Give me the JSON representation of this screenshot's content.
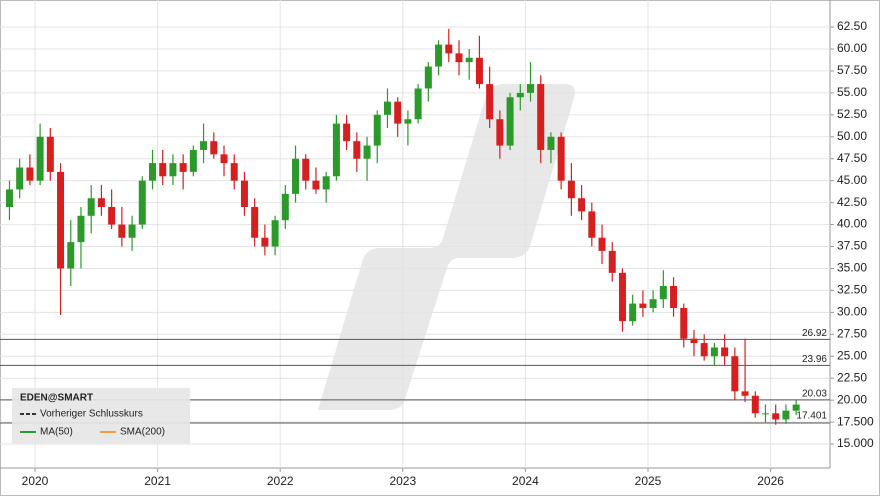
{
  "chart_data": {
    "type": "candlestick",
    "title": "EDEN@SMART",
    "categories": [
      null,
      null,
      null,
      "2020",
      null,
      null,
      null,
      null,
      null,
      null,
      null,
      null,
      null,
      null,
      null,
      "2021",
      null,
      null,
      null,
      null,
      null,
      null,
      null,
      null,
      null,
      null,
      null,
      "2022",
      null,
      null,
      null,
      null,
      null,
      null,
      null,
      null,
      null,
      null,
      null,
      "2023",
      null,
      null,
      null,
      null,
      null,
      null,
      null,
      null,
      null,
      null,
      null,
      "2024",
      null,
      null,
      null,
      null,
      null,
      null,
      null,
      null,
      null,
      null,
      null,
      "2025",
      null,
      null,
      null,
      null,
      null,
      null,
      null,
      null,
      null,
      null,
      null,
      "2026",
      null,
      null
    ],
    "open": [
      42,
      44,
      46.5,
      45,
      50,
      46,
      35,
      38,
      41,
      43,
      42,
      40,
      38.5,
      40,
      45,
      47,
      45.5,
      47,
      46,
      48.5,
      49.5,
      48,
      47,
      45,
      42,
      38.5,
      37.5,
      40.5,
      43.5,
      47.5,
      45,
      44,
      45.5,
      51.5,
      49.5,
      47.5,
      49,
      52.5,
      54,
      51.5,
      52,
      55.5,
      58,
      60.5,
      59.5,
      58.5,
      59,
      56,
      52,
      49,
      54.5,
      55,
      56,
      48.5,
      50,
      45,
      43,
      41.5,
      38.5,
      37,
      34.5,
      29,
      31,
      30.5,
      31.5,
      33,
      30.5,
      27,
      26.5,
      25,
      26,
      25,
      21,
      20.5,
      18.5,
      18.5,
      17.8,
      18.8
    ],
    "high": [
      45,
      47.5,
      48,
      51.5,
      51,
      47,
      40.5,
      42,
      44.5,
      44.5,
      44,
      42,
      41,
      45.5,
      48.5,
      48.5,
      48,
      48,
      49,
      51.5,
      50.5,
      49,
      48,
      46,
      43,
      40,
      41,
      44.5,
      49,
      48,
      46.5,
      46,
      52.5,
      52.5,
      50.5,
      50,
      53,
      55.5,
      54.5,
      53,
      56,
      58.5,
      61,
      62.3,
      61,
      60,
      61.5,
      58,
      53,
      55,
      56,
      58.5,
      57,
      50.5,
      50.5,
      47,
      44.5,
      42.5,
      40,
      38,
      35,
      32,
      32.5,
      32.5,
      34.8,
      34,
      31,
      28,
      27.5,
      26.5,
      27.5,
      26,
      27,
      21,
      19.5,
      19.5,
      19.5,
      20
    ],
    "low": [
      40.5,
      43,
      44.5,
      44.5,
      45,
      29.7,
      33,
      35,
      39,
      41,
      39.5,
      37.5,
      37,
      39.5,
      44,
      44.5,
      44.5,
      44,
      45.5,
      47,
      47.5,
      45.5,
      44,
      41,
      37.5,
      36.5,
      36.5,
      39.5,
      42.5,
      44,
      43.5,
      42.5,
      45,
      48.5,
      46,
      45,
      47,
      51,
      50,
      49,
      51.5,
      54,
      57,
      58.5,
      57,
      56.5,
      55.5,
      51,
      47.5,
      48.5,
      53,
      54,
      47,
      47,
      44,
      41,
      40.5,
      37.5,
      35.5,
      33.5,
      27.8,
      28.5,
      29.5,
      30,
      30.5,
      29.5,
      26,
      25,
      24.5,
      24,
      24,
      20,
      19.8,
      18,
      17.5,
      17.2,
      17.3,
      18.3
    ],
    "close": [
      44,
      46.5,
      45,
      50,
      46,
      35,
      38,
      41,
      43,
      42,
      40,
      38.5,
      40,
      45,
      47,
      45.5,
      47,
      46,
      48.5,
      49.5,
      48,
      47,
      45,
      42,
      38.5,
      37.5,
      40.5,
      43.5,
      47.5,
      45,
      44,
      45.5,
      51.5,
      49.5,
      47.5,
      49,
      52.5,
      54,
      51.5,
      52,
      55.5,
      58,
      60.5,
      59.5,
      58.5,
      59,
      56,
      52,
      49,
      54.5,
      55,
      56,
      48.5,
      50,
      45,
      43,
      41.5,
      38.5,
      37,
      34.5,
      29,
      31,
      30.5,
      31.5,
      33,
      30.5,
      27,
      26.5,
      25,
      26,
      25,
      21,
      20.5,
      18.5,
      18.5,
      17.8,
      18.8,
      19.5
    ],
    "up_color": "#2b9a2b",
    "down_color": "#d61f1f",
    "levels": [
      26.92,
      23.96,
      20.03,
      17.401
    ],
    "legend_items": [
      {
        "name": "Vorheriger Schlusskurs",
        "color": "#333333"
      },
      {
        "name": "MA(50)",
        "color": "#2b9a2b"
      },
      {
        "name": "SMA(200)",
        "color": "#e8a040"
      }
    ],
    "ylim": [
      12.27,
      65.58
    ],
    "yticks": [
      {
        "value": 15,
        "label": "15.000"
      },
      {
        "value": 17.5,
        "label": "17.500"
      },
      {
        "value": 20,
        "label": "20.00"
      },
      {
        "value": 22.5,
        "label": "22.50"
      },
      {
        "value": 25,
        "label": "25.00"
      },
      {
        "value": 27.5,
        "label": "27.50"
      },
      {
        "value": 30,
        "label": "30.00"
      },
      {
        "value": 32.5,
        "label": "32.50"
      },
      {
        "value": 35,
        "label": "35.00"
      },
      {
        "value": 37.5,
        "label": "37.50"
      },
      {
        "value": 40,
        "label": "40.00"
      },
      {
        "value": 42.5,
        "label": "42.50"
      },
      {
        "value": 45,
        "label": "45.00"
      },
      {
        "value": 47.5,
        "label": "47.50"
      },
      {
        "value": 50,
        "label": "50.00"
      },
      {
        "value": 52.5,
        "label": "52.50"
      },
      {
        "value": 55,
        "label": "55.00"
      },
      {
        "value": 57.5,
        "label": "57.50"
      },
      {
        "value": 60,
        "label": "60.00"
      },
      {
        "value": 62.5,
        "label": "62.50"
      }
    ],
    "grid": true
  }
}
